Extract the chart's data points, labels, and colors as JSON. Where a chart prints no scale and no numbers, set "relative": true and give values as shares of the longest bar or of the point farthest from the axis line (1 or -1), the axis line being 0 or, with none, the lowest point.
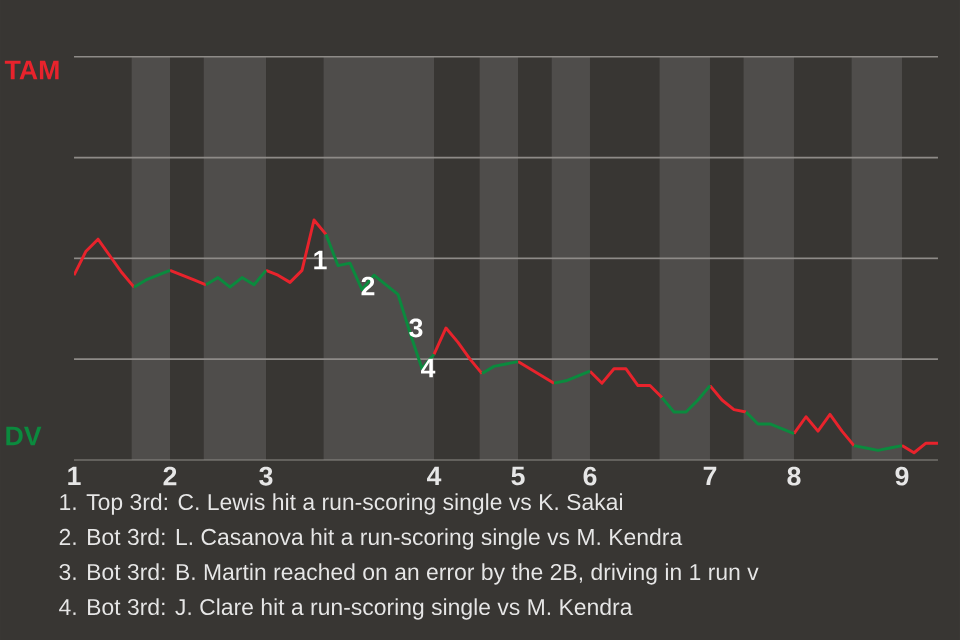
{
  "chart_data": {
    "type": "line",
    "categories": [
      "1",
      null,
      null,
      null,
      null,
      null,
      null,
      null,
      "2",
      null,
      null,
      null,
      null,
      null,
      null,
      null,
      "3",
      null,
      null,
      null,
      null,
      null,
      null,
      null,
      null,
      null,
      null,
      null,
      null,
      null,
      "4",
      null,
      null,
      null,
      null,
      null,
      null,
      "5",
      null,
      null,
      null,
      null,
      null,
      "6",
      null,
      null,
      null,
      null,
      null,
      null,
      null,
      null,
      null,
      "7",
      null,
      null,
      null,
      null,
      null,
      null,
      "8",
      null,
      null,
      null,
      null,
      null,
      null,
      null,
      null,
      "9",
      null,
      null,
      null
    ],
    "relative": true,
    "series": [
      {
        "name": "TAM",
        "color": "#e8232c",
        "values": [
          0.77,
          0.87,
          0.92,
          0.85,
          0.78,
          0.72,
          null,
          null,
          0.79,
          0.77,
          0.75,
          0.73,
          null,
          null,
          null,
          null,
          0.79,
          0.77,
          0.74,
          0.79,
          1,
          0.94,
          null,
          null,
          null,
          null,
          null,
          null,
          null,
          null,
          0.44,
          0.55,
          0.49,
          0.42,
          0.36,
          null,
          null,
          0.41,
          0.38,
          0.35,
          0.32,
          null,
          null,
          0.37,
          0.32,
          0.38,
          0.38,
          0.31,
          0.31,
          0.26,
          null,
          null,
          null,
          0.31,
          0.25,
          0.21,
          0.2,
          null,
          null,
          null,
          0.11,
          0.18,
          0.12,
          0.19,
          0.12,
          0.06,
          null,
          null,
          null,
          0.06,
          0.03,
          0.07,
          0.07
        ]
      },
      {
        "name": "DV",
        "color": "#0b8a3e",
        "values": [
          null,
          null,
          null,
          null,
          null,
          0.72,
          0.75,
          0.77,
          0.79,
          null,
          null,
          0.73,
          0.76,
          0.72,
          0.76,
          0.73,
          0.79,
          null,
          null,
          null,
          null,
          0.94,
          0.81,
          0.82,
          0.71,
          0.77,
          0.73,
          0.69,
          0.53,
          0.38,
          0.44,
          null,
          null,
          null,
          0.36,
          0.39,
          0.4,
          0.41,
          null,
          null,
          0.32,
          0.33,
          0.35,
          0.37,
          null,
          null,
          null,
          null,
          null,
          0.26,
          0.2,
          0.2,
          0.25,
          0.31,
          null,
          null,
          0.2,
          0.15,
          0.15,
          0.13,
          0.11,
          null,
          null,
          null,
          null,
          0.06,
          0.05,
          0.04,
          0.05,
          0.06,
          null,
          null,
          null
        ]
      }
    ],
    "line_style": "solid",
    "ref_lines": [
      {
        "axis": "y",
        "value": 0.42,
        "color": "#8e8b88"
      },
      {
        "axis": "y",
        "value": 0.84,
        "color": "#8e8b88"
      },
      {
        "axis": "y",
        "value": 1.26,
        "color": "#8e8b88"
      },
      {
        "axis": "y",
        "value": 1.68,
        "color": "#8e8b88"
      }
    ],
    "annotations": [
      "1",
      "2",
      "3",
      "4",
      "1. Top 3rd: C. Lewis hit a run-scoring single vs K. Sakai",
      "2. Bot 3rd: L. Casanova hit a run-scoring single vs M. Kendra",
      "3. Bot 3rd: B. Martin reached on an error by the 2B, driving in 1 run v",
      "4. Bot 3rd: J. Clare hit a run-scoring single vs M. Kendra"
    ]
  }
}
